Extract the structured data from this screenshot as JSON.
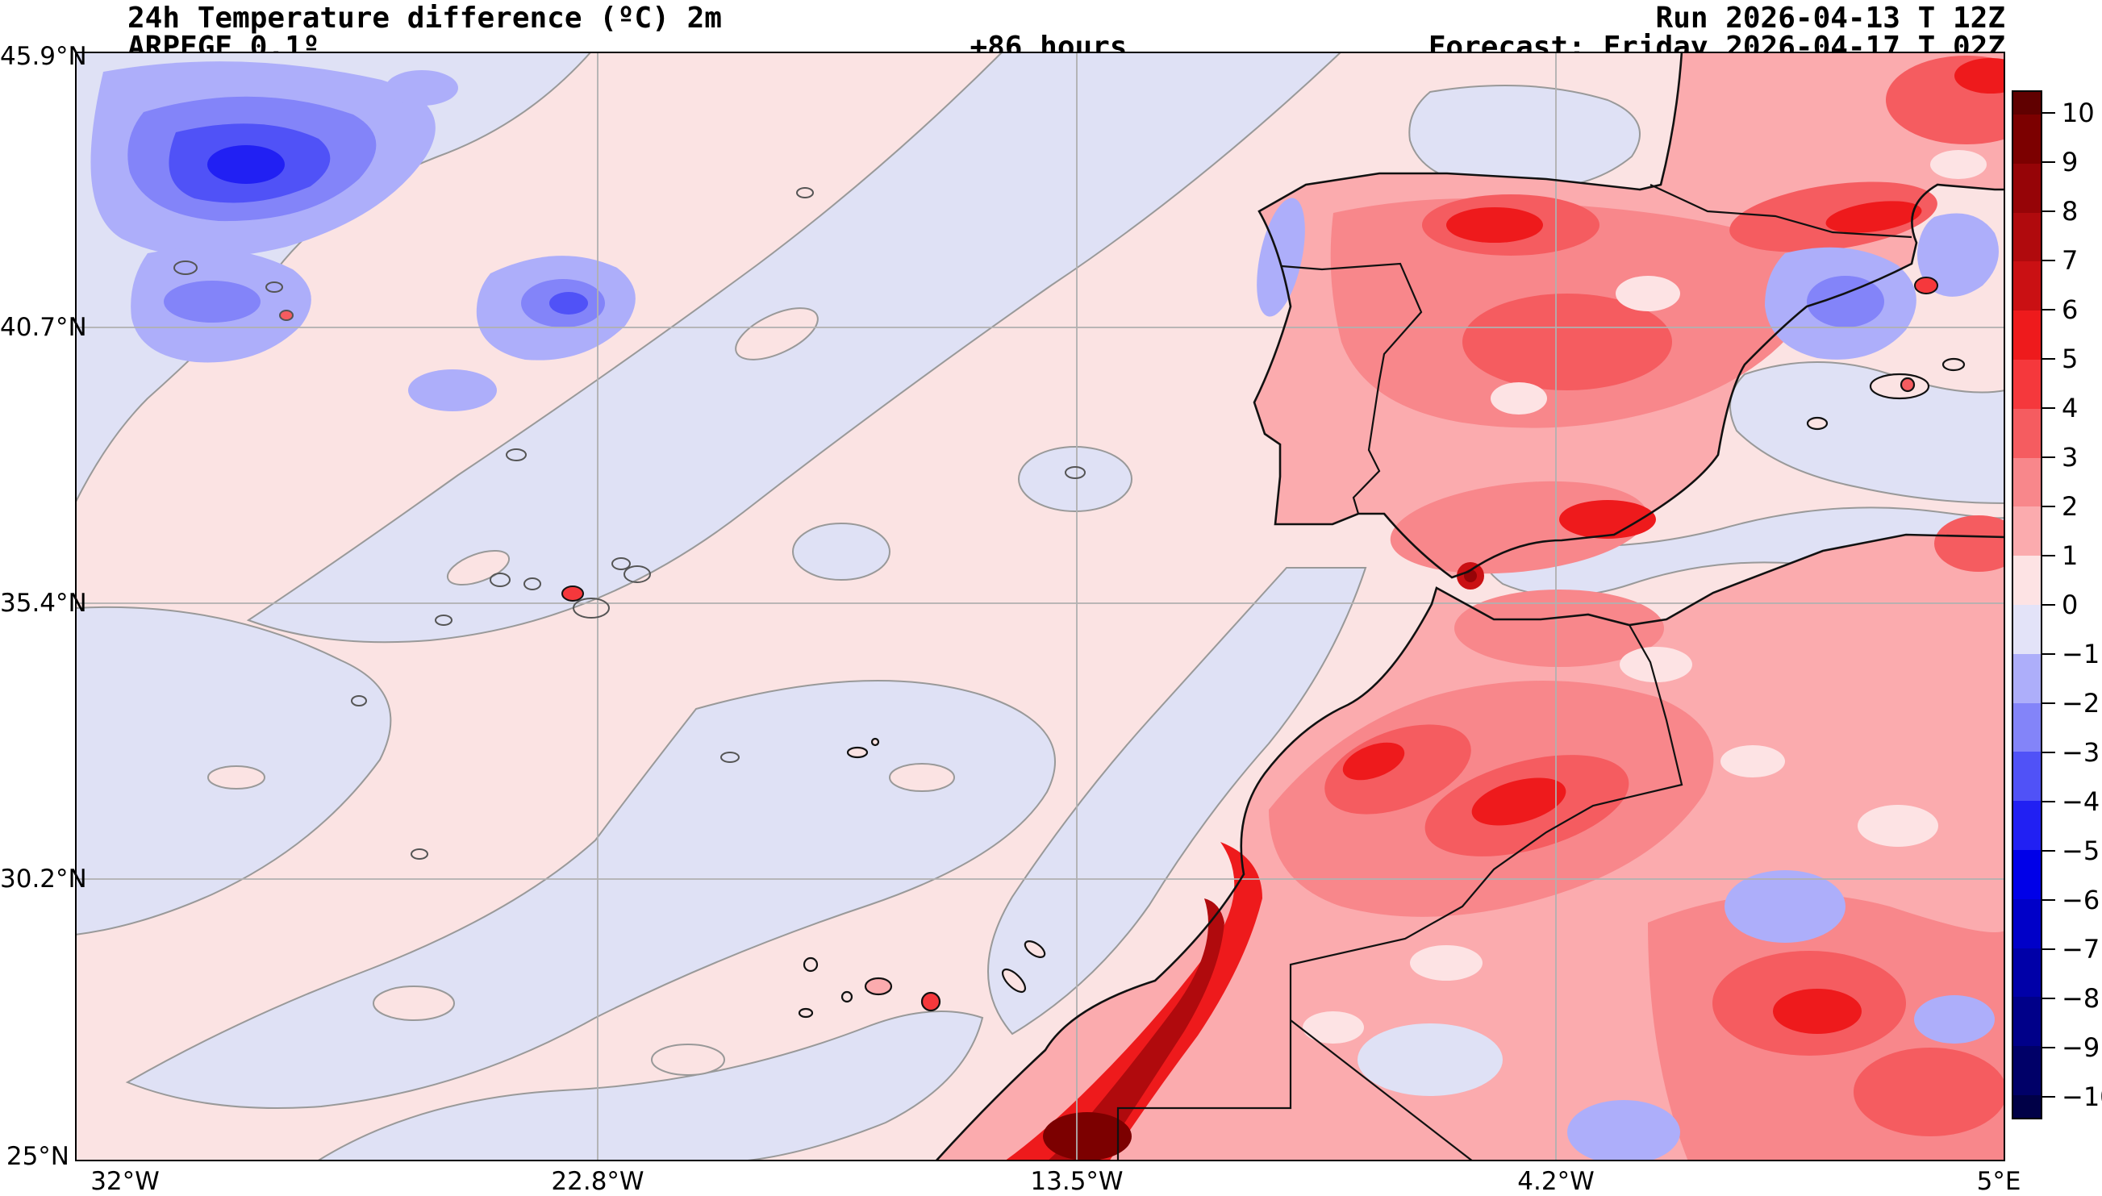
{
  "header": {
    "title_line1": "24h Temperature difference (ºC) 2m",
    "title_line2": "ARPEGE 0.1º",
    "lead_time": "+86 hours",
    "run": "Run 2026-04-13 T 12Z",
    "forecast": "Forecast: Friday 2026-04-17 T 02Z"
  },
  "chart_data": {
    "type": "filled-contour-map",
    "title": "24h Temperature difference (ºC) 2m",
    "model": "ARPEGE 0.1º",
    "lead_time_hours": 86,
    "run_time": "2026-04-13 12Z",
    "valid_time": "Friday 2026-04-17 02Z",
    "units": "°C",
    "x_axis": {
      "ticks": [
        "32°W",
        "22.8°W",
        "13.5°W",
        "4.2°W",
        "5°E"
      ],
      "range_deg_lon": [
        -32,
        5
      ]
    },
    "y_axis": {
      "ticks": [
        "45.9°N",
        "40.7°N",
        "35.4°N",
        "30.2°N",
        "25°N"
      ],
      "range_deg_lat": [
        25,
        45.9
      ]
    },
    "grid": true,
    "colorbar": {
      "tick_labels": [
        "10",
        "9",
        "8",
        "7",
        "6",
        "5",
        "4",
        "3",
        "2",
        "1",
        "0",
        "−1",
        "−2",
        "−3",
        "−4",
        "−5",
        "−6",
        "−7",
        "−8",
        "−9",
        "−10"
      ],
      "levels": [
        -10,
        -9,
        -8,
        -7,
        -6,
        -5,
        -4,
        -3,
        -2,
        -1,
        0,
        1,
        2,
        3,
        4,
        5,
        6,
        7,
        8,
        9,
        10
      ],
      "extend": "both",
      "segment_colors_top_to_bottom": [
        "#600000",
        "#7c0000",
        "#960407",
        "#b00a0d",
        "#ca1013",
        "#ee1a1c",
        "#f5383c",
        "#f55c60",
        "#f8878b",
        "#fbabae",
        "#fde3e4",
        "#e3e3f8",
        "#adaefa",
        "#8384f9",
        "#5052f7",
        "#2120f3",
        "#0000e8",
        "#0000c8",
        "#0000a8",
        "#000089",
        "#000068",
        "#000047"
      ]
    },
    "colors": {
      "background": "#ffffff",
      "grid_line": "#b0b0b0",
      "coastline": "#111111",
      "zero_contour": "#999999",
      "ocean_pale_pink": "#fbe3e3",
      "ocean_pale_lavender": "#dfe1f5"
    },
    "regions_summary": [
      {
        "area": "Northwest Atlantic (top-left)",
        "anomaly": "-2 to -5 °C cooling pocket with dark blue core"
      },
      {
        "area": "Open Atlantic",
        "anomaly": "-1 to +1 °C alternating pale bands"
      },
      {
        "area": "Mid-Atlantic pocket near 21°W 41°N",
        "anomaly": "-2 to -4 °C"
      },
      {
        "area": "Iberian Peninsula",
        "anomaly": "+2 to +6 °C widespread warming"
      },
      {
        "area": "Northeast Spain / Catalonia coast",
        "anomaly": "-1 to -3 °C pocket"
      },
      {
        "area": "Gibraltar Strait",
        "anomaly": "local +7 to +9 °C spot"
      },
      {
        "area": "Morocco / Atlas mountains",
        "anomaly": "+3 to +7 °C warming"
      },
      {
        "area": "Western Sahara coast",
        "anomaly": "+5 to +9 °C intense band"
      },
      {
        "area": "Algeria interior",
        "anomaly": "+1 to +5 °C with small -1 to -2 pockets"
      },
      {
        "area": "Southern France (top-right)",
        "anomaly": "+2 to +6 °C with -1 to -3 pocket"
      }
    ]
  }
}
